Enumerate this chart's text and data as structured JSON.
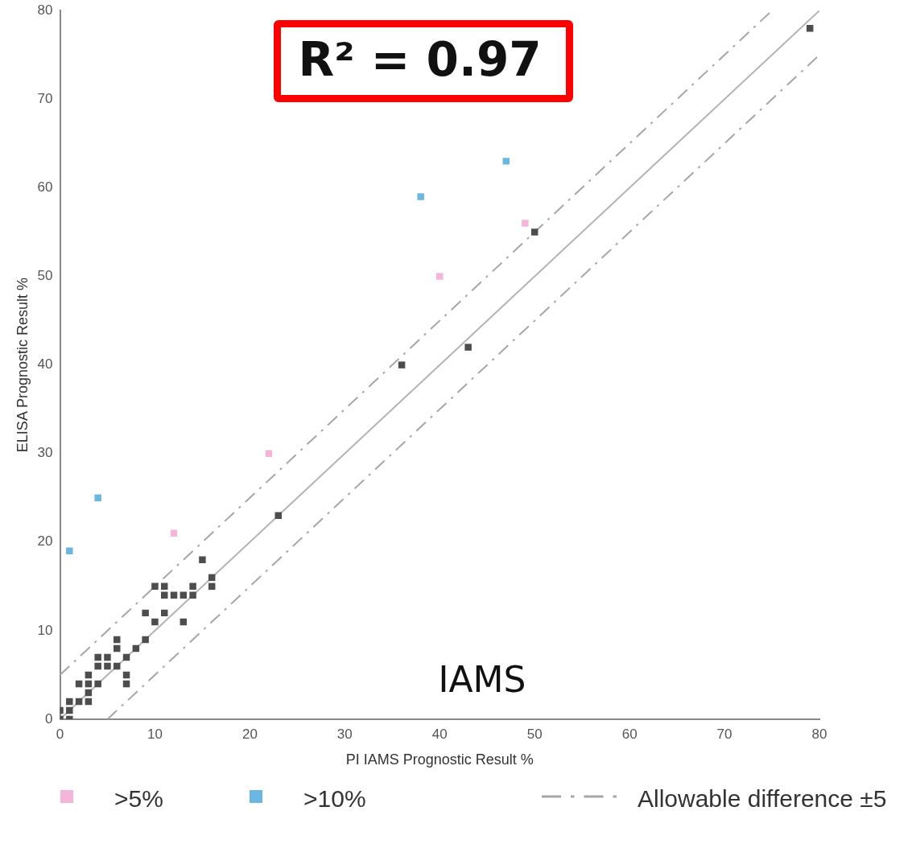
{
  "chart_data": {
    "type": "scatter",
    "xlabel": "PI IAMS Prognostic Result %",
    "ylabel": "ELISA Prognostic Result %",
    "xlim": [
      0,
      80
    ],
    "ylim": [
      0,
      80
    ],
    "xticks": [
      0,
      10,
      20,
      30,
      40,
      50,
      60,
      70,
      80
    ],
    "yticks": [
      0,
      10,
      20,
      30,
      40,
      50,
      60,
      70,
      80
    ],
    "grid": false,
    "legend": "bottom",
    "marker": "square",
    "annotations": [
      "R² = 0.97",
      "IAMS"
    ],
    "series": [
      {
        "color": "#4d4d4d",
        "x": [
          0,
          0,
          1,
          1,
          1,
          2,
          2,
          3,
          3,
          3,
          3,
          4,
          4,
          4,
          5,
          5,
          6,
          6,
          6,
          7,
          7,
          7,
          8,
          9,
          9,
          10,
          10,
          11,
          11,
          11,
          12,
          13,
          13,
          14,
          14,
          15,
          16,
          16,
          23,
          36,
          43,
          50,
          79
        ],
        "values": [
          0,
          1,
          0,
          1,
          2,
          2,
          4,
          2,
          3,
          4,
          5,
          4,
          6,
          7,
          6,
          7,
          6,
          8,
          9,
          4,
          5,
          7,
          8,
          9,
          12,
          11,
          15,
          12,
          14,
          15,
          14,
          11,
          14,
          14,
          15,
          18,
          15,
          16,
          23,
          40,
          42,
          55,
          78
        ]
      },
      {
        "name": ">5%",
        "color": "#f4b6d8",
        "x": [
          12,
          22,
          40,
          49
        ],
        "values": [
          21,
          30,
          50,
          56
        ]
      },
      {
        "name": ">10%",
        "color": "#6bb7e0",
        "x": [
          1,
          4,
          38,
          47
        ],
        "values": [
          19,
          25,
          59,
          63
        ]
      },
      {
        "type": "line",
        "color": "#b3b3b3",
        "line_style": "solid",
        "marker": "none",
        "x": [
          0,
          80
        ],
        "values": [
          0,
          80
        ]
      },
      {
        "type": "line",
        "name": "Allowable difference ±5",
        "color": "#a6a6a6",
        "line_style": "dashed",
        "marker": "none",
        "x": [
          0,
          75,
          null,
          5,
          80
        ],
        "values": [
          5,
          80,
          null,
          0,
          75
        ]
      }
    ]
  }
}
